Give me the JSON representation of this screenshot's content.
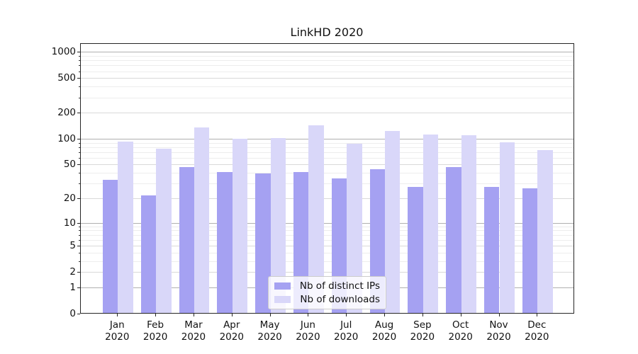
{
  "title": "LinkHD 2020",
  "legend": {
    "items": [
      {
        "label": "Nb of distinct IPs",
        "color": "#a5a1f2"
      },
      {
        "label": "Nb of downloads",
        "color": "#d9d7f9"
      }
    ]
  },
  "chart_data": {
    "type": "bar",
    "title": "LinkHD 2020",
    "categories": [
      "Jan",
      "Feb",
      "Mar",
      "Apr",
      "May",
      "Jun",
      "Jul",
      "Aug",
      "Sep",
      "Oct",
      "Nov",
      "Dec"
    ],
    "category_year_label": "2020",
    "series": [
      {
        "name": "Nb of distinct IPs",
        "color": "#a5a1f2",
        "values": [
          34,
          22,
          48,
          42,
          40,
          42,
          35,
          45,
          28,
          48,
          28,
          27
        ]
      },
      {
        "name": "Nb of downloads",
        "color": "#d9d7f9",
        "values": [
          94,
          78,
          138,
          101,
          103,
          145,
          90,
          125,
          115,
          112,
          93,
          75
        ]
      }
    ],
    "xlabel": "",
    "ylabel": "",
    "ylim": [
      0,
      1000
    ],
    "y_scale": "log10(value+1)",
    "y_ticks": [
      0,
      1,
      2,
      5,
      10,
      20,
      50,
      100,
      200,
      500,
      1000
    ],
    "y_decade_ticks": [
      1,
      10,
      100,
      1000
    ],
    "y_sub_ticks": [
      2,
      5,
      20,
      50,
      200,
      500
    ],
    "y_minor_ticks": [
      3,
      4,
      6,
      7,
      8,
      9,
      30,
      40,
      60,
      70,
      80,
      90,
      300,
      400,
      600,
      700,
      800,
      900
    ],
    "grid": "both",
    "legend_position": "lower center",
    "colors": {
      "grid_decade": "#b0b0b0",
      "grid_sub": "#d9d9d9",
      "grid_minor": "#ededed",
      "spine": "#262626",
      "background": "#ffffff"
    }
  }
}
